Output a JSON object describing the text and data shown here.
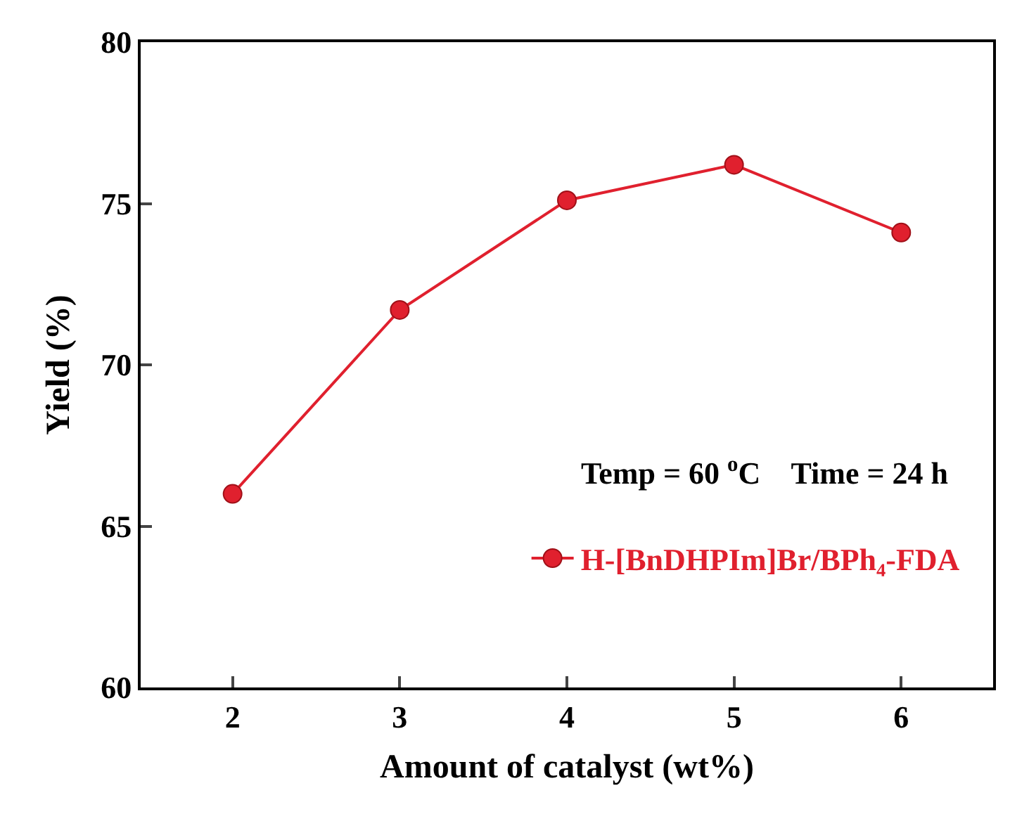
{
  "chart_data": {
    "type": "line",
    "xlabel": "Amount of catalyst (wt%)",
    "ylabel": "Yield (%)",
    "x": [
      2,
      3,
      4,
      5,
      6
    ],
    "series": [
      {
        "name": "H-[BnDHPIm]Br/BPh₄-FDA",
        "color": "#e0202e",
        "values": [
          66.0,
          71.7,
          75.1,
          76.2,
          74.1
        ]
      }
    ],
    "xlim": [
      1.45,
      6.55
    ],
    "xticks": [
      2,
      3,
      4,
      5,
      6
    ],
    "ylim": [
      60,
      80
    ],
    "yticks": [
      60,
      65,
      70,
      75,
      80
    ],
    "annotations": [
      "Temp = 60 $^{o}$C    Time = 24 h"
    ],
    "marker": "circle",
    "line_style": "solid",
    "legend": "right"
  }
}
